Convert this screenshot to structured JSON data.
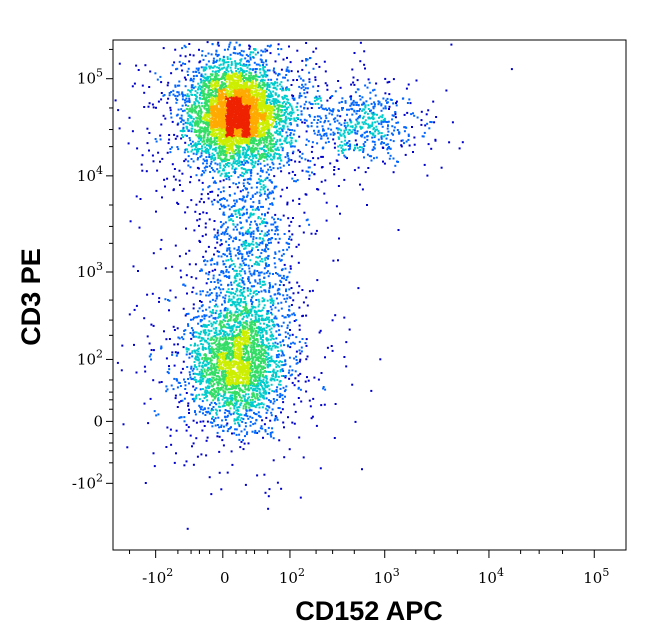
{
  "chart_data": {
    "type": "scatter",
    "subtype": "flow-cytometry-density-dot-plot",
    "xlabel": "CD152 APC",
    "ylabel": "CD3 PE",
    "x_scale": "biexponential",
    "y_scale": "biexponential",
    "xlim": [
      -300,
      200000
    ],
    "ylim": [
      -600,
      250000
    ],
    "x_ticks": [
      {
        "value": -100,
        "base": "-10",
        "exp": "2"
      },
      {
        "value": 0,
        "base": "0",
        "exp": ""
      },
      {
        "value": 100,
        "base": "10",
        "exp": "2"
      },
      {
        "value": 1000,
        "base": "10",
        "exp": "3"
      },
      {
        "value": 10000,
        "base": "10",
        "exp": "4"
      },
      {
        "value": 100000,
        "base": "10",
        "exp": "5"
      }
    ],
    "y_ticks": [
      {
        "value": -100,
        "base": "-10",
        "exp": "2"
      },
      {
        "value": 0,
        "base": "0",
        "exp": ""
      },
      {
        "value": 100,
        "base": "10",
        "exp": "2"
      },
      {
        "value": 1000,
        "base": "10",
        "exp": "3"
      },
      {
        "value": 10000,
        "base": "10",
        "exp": "4"
      },
      {
        "value": 100000,
        "base": "10",
        "exp": "5"
      }
    ],
    "populations": [
      {
        "x_center": 10,
        "x_spread": 60,
        "y_center": 45000,
        "y_spread_log": 0.25,
        "share": 0.52
      },
      {
        "x_center": 10,
        "x_spread": 60,
        "y_center": 90,
        "y_spread_log": 0.3,
        "share": 0.3
      },
      {
        "x_center": 20,
        "x_spread": 80,
        "y_center": 1500,
        "y_spread_log": 0.55,
        "share": 0.12
      },
      {
        "x_center": 600,
        "x_spread_log": 0.45,
        "y_center": 35000,
        "y_spread_log": 0.2,
        "share": 0.06
      }
    ],
    "color_scale": [
      "#0000cc",
      "#0066ff",
      "#00cccc",
      "#33dd66",
      "#ccee00",
      "#ffaa00",
      "#ee2200"
    ],
    "grid": false,
    "legend": "none"
  }
}
